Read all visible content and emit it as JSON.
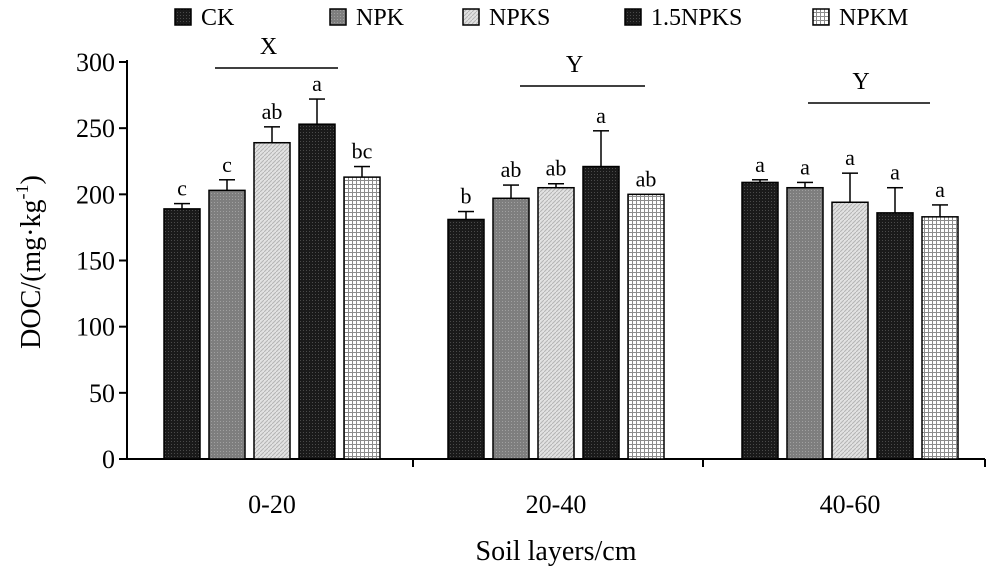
{
  "chart_data": {
    "type": "bar",
    "xlabel": "Soil layers/cm",
    "ylabel": "DOC/(mg·kg",
    "ylabel_sup": "-1",
    "ylabel_close": ")",
    "ylim": [
      0,
      300
    ],
    "yticks": [
      "0",
      "50",
      "100",
      "150",
      "200",
      "250",
      "300"
    ],
    "categories": [
      "0-20",
      "20-40",
      "40-60"
    ],
    "legend_position": "top",
    "series": [
      {
        "name": "CK",
        "values": [
          189,
          181,
          209
        ],
        "errors": [
          4,
          6,
          2
        ],
        "labels": [
          "c",
          "b",
          "a"
        ],
        "pattern": "dark"
      },
      {
        "name": "NPK",
        "values": [
          203,
          197,
          205
        ],
        "errors": [
          8,
          10,
          4
        ],
        "labels": [
          "c",
          "ab",
          "a"
        ],
        "pattern": "gray"
      },
      {
        "name": "NPKS",
        "values": [
          239,
          205,
          194
        ],
        "errors": [
          12,
          3,
          22
        ],
        "labels": [
          "ab",
          "ab",
          "a"
        ],
        "pattern": "light"
      },
      {
        "name": "1.5NPKS",
        "values": [
          253,
          221,
          186
        ],
        "errors": [
          19,
          27,
          19
        ],
        "labels": [
          "a",
          "a",
          "a"
        ],
        "pattern": "dark"
      },
      {
        "name": "NPKM",
        "values": [
          213,
          200,
          183
        ],
        "errors": [
          8,
          0,
          9
        ],
        "labels": [
          "bc",
          "ab",
          "a"
        ],
        "pattern": "grid"
      }
    ],
    "group_labels": [
      "X",
      "Y",
      "Y"
    ],
    "grid": false
  }
}
